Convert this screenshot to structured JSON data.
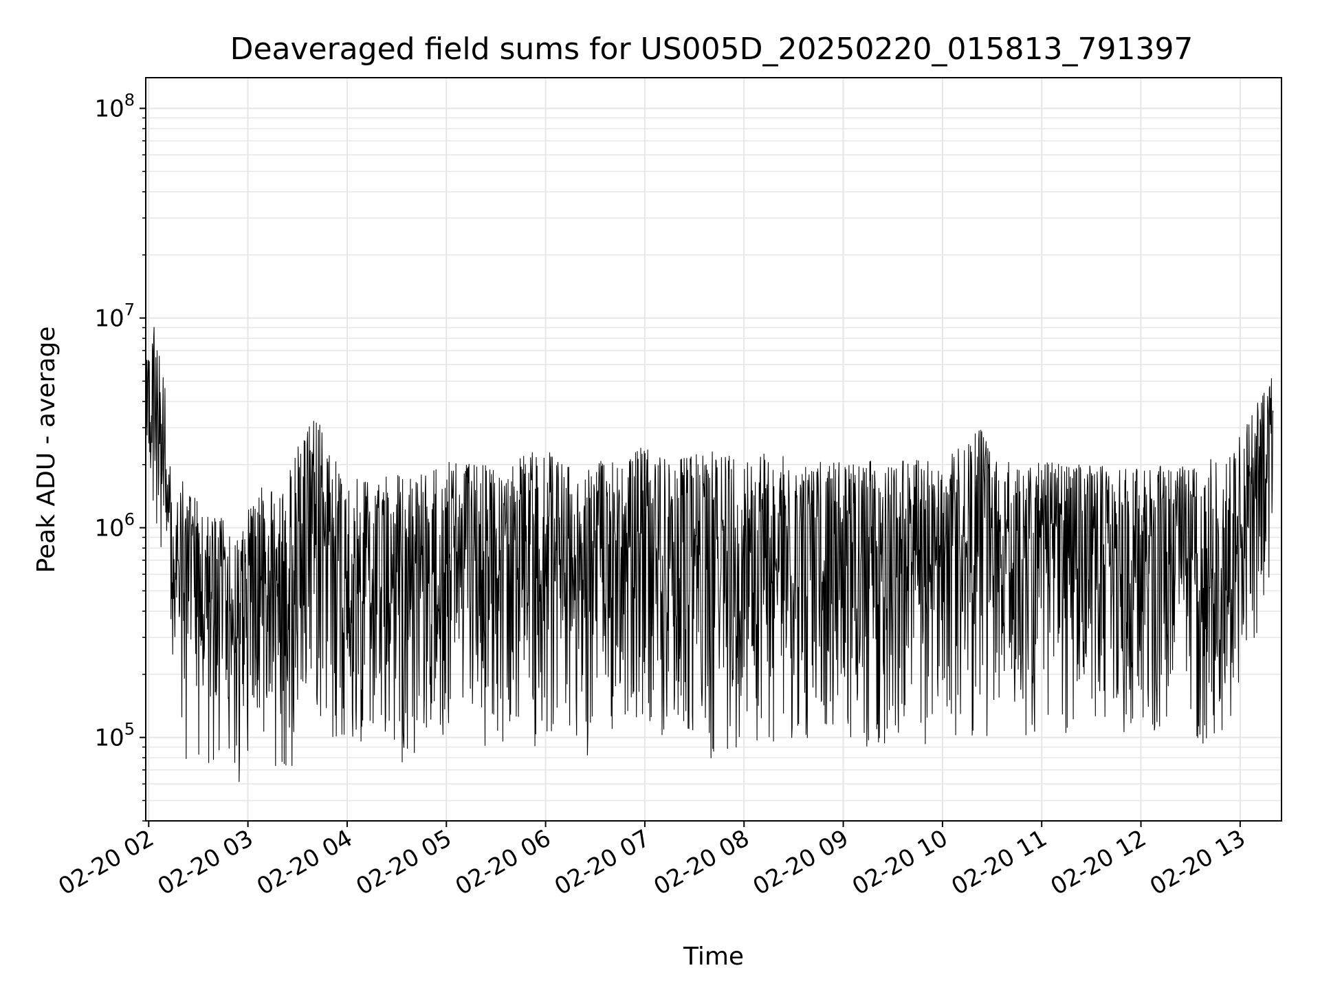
{
  "chart_data": {
    "type": "line",
    "title": "Deaveraged field sums for US005D_20250220_015813_791397",
    "xlabel": "Time",
    "ylabel": "Peak ADU - average",
    "y_scale": "log",
    "ylim": [
      40000,
      140000000
    ],
    "xlim": [
      "2025-02-20T01:58:13",
      "2025-02-20T13:25:00"
    ],
    "grid": true,
    "line_color": "#000000",
    "grid_color": "#e6e6e6",
    "x_ticks": [
      {
        "time": "2025-02-20T02:00",
        "label": "02-20 02"
      },
      {
        "time": "2025-02-20T03:00",
        "label": "02-20 03"
      },
      {
        "time": "2025-02-20T04:00",
        "label": "02-20 04"
      },
      {
        "time": "2025-02-20T05:00",
        "label": "02-20 05"
      },
      {
        "time": "2025-02-20T06:00",
        "label": "02-20 06"
      },
      {
        "time": "2025-02-20T07:00",
        "label": "02-20 07"
      },
      {
        "time": "2025-02-20T08:00",
        "label": "02-20 08"
      },
      {
        "time": "2025-02-20T09:00",
        "label": "02-20 09"
      },
      {
        "time": "2025-02-20T10:00",
        "label": "02-20 10"
      },
      {
        "time": "2025-02-20T11:00",
        "label": "02-20 11"
      },
      {
        "time": "2025-02-20T12:00",
        "label": "02-20 12"
      },
      {
        "time": "2025-02-20T13:00",
        "label": "02-20 13"
      }
    ],
    "y_ticks": [
      {
        "value": 100000,
        "base": "10",
        "exp": "5"
      },
      {
        "value": 1000000,
        "base": "10",
        "exp": "6"
      },
      {
        "value": 10000000,
        "base": "10",
        "exp": "7"
      },
      {
        "value": 100000000,
        "base": "10",
        "exp": "8"
      }
    ],
    "series": [
      {
        "envelope": [
          {
            "t": "2025-02-20T01:58",
            "low": 1500000,
            "high": 6000000
          },
          {
            "t": "2025-02-20T02:03",
            "low": 800000,
            "high": 10500000
          },
          {
            "t": "2025-02-20T02:10",
            "low": 700000,
            "high": 5700000
          },
          {
            "t": "2025-02-20T02:15",
            "low": 200000,
            "high": 1100000
          },
          {
            "t": "2025-02-20T02:20",
            "low": 80000,
            "high": 1800000
          },
          {
            "t": "2025-02-20T02:30",
            "low": 70000,
            "high": 1400000
          },
          {
            "t": "2025-02-20T02:45",
            "low": 60000,
            "high": 1200000
          },
          {
            "t": "2025-02-20T02:55",
            "low": 55000,
            "high": 900000
          },
          {
            "t": "2025-02-20T03:05",
            "low": 58000,
            "high": 1800000
          },
          {
            "t": "2025-02-20T03:20",
            "low": 65000,
            "high": 1500000
          },
          {
            "t": "2025-02-20T03:32",
            "low": 75000,
            "high": 2900000
          },
          {
            "t": "2025-02-20T03:42",
            "low": 80000,
            "high": 3700000
          },
          {
            "t": "2025-02-20T04:00",
            "low": 85000,
            "high": 1800000
          },
          {
            "t": "2025-02-20T04:30",
            "low": 70000,
            "high": 1900000
          },
          {
            "t": "2025-02-20T05:00",
            "low": 90000,
            "high": 2200000
          },
          {
            "t": "2025-02-20T05:30",
            "low": 85000,
            "high": 2100000
          },
          {
            "t": "2025-02-20T06:00",
            "low": 90000,
            "high": 2600000
          },
          {
            "t": "2025-02-20T06:20",
            "low": 68000,
            "high": 1900000
          },
          {
            "t": "2025-02-20T06:50",
            "low": 110000,
            "high": 2700000
          },
          {
            "t": "2025-02-20T07:20",
            "low": 80000,
            "high": 2300000
          },
          {
            "t": "2025-02-20T07:40",
            "low": 73000,
            "high": 2500000
          },
          {
            "t": "2025-02-20T08:00",
            "low": 95000,
            "high": 2500000
          },
          {
            "t": "2025-02-20T08:30",
            "low": 92000,
            "high": 2300000
          },
          {
            "t": "2025-02-20T09:00",
            "low": 85000,
            "high": 2200000
          },
          {
            "t": "2025-02-20T09:30",
            "low": 80000,
            "high": 2300000
          },
          {
            "t": "2025-02-20T10:00",
            "low": 85000,
            "high": 2200000
          },
          {
            "t": "2025-02-20T10:30",
            "low": 90000,
            "high": 2200000
          },
          {
            "t": "2025-02-20T10:25",
            "low": 100000,
            "high": 3300000
          },
          {
            "t": "2025-02-20T11:00",
            "low": 95000,
            "high": 2200000
          },
          {
            "t": "2025-02-20T11:30",
            "low": 100000,
            "high": 2100000
          },
          {
            "t": "2025-02-20T12:00",
            "low": 100000,
            "high": 2100000
          },
          {
            "t": "2025-02-20T12:30",
            "low": 90000,
            "high": 2100000
          },
          {
            "t": "2025-02-20T12:55",
            "low": 95000,
            "high": 2500000
          },
          {
            "t": "2025-02-20T13:20",
            "low": 600000,
            "high": 5800000
          }
        ]
      }
    ]
  }
}
